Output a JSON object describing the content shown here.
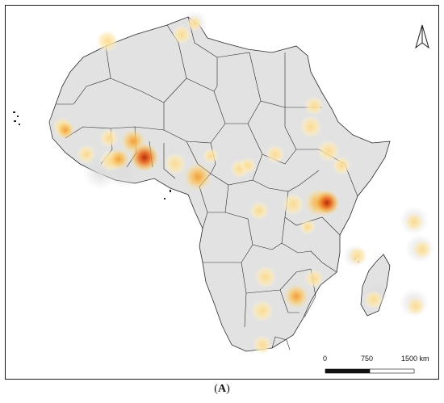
{
  "map": {
    "colors": {
      "land": "#e2e2e2",
      "border": "#2a2a2a",
      "ocean": "#ffffff",
      "halo": "#e6e6e6",
      "hot_low": "#fde9a8",
      "hot_mid": "#f7a23a",
      "hot_high": "#c8380a"
    },
    "north_arrow_icon": "north-arrow-icon",
    "scale_bar": {
      "labels": [
        "0",
        "750",
        "1500 km"
      ],
      "segments_km": [
        0,
        750,
        1500
      ]
    }
  },
  "caption": {
    "open": "(",
    "letter": "A",
    "close": ")"
  }
}
